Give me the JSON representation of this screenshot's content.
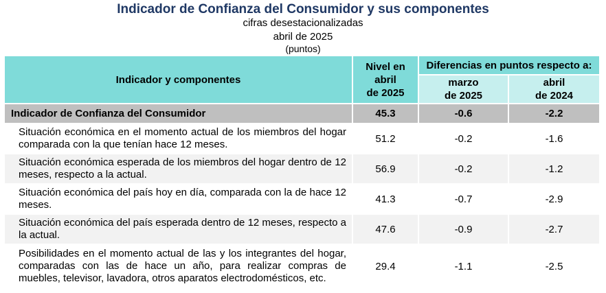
{
  "header": {
    "title": "Indicador de Confianza del Consumidor y sus componentes",
    "subtitle": "cifras desestacionalizadas",
    "period": "abril de 2025",
    "units": "(puntos)"
  },
  "table": {
    "col_indicator": "Indicador y componentes",
    "col_level": [
      "Nivel en",
      "abril",
      "de 2025"
    ],
    "col_diff_group": "Diferencias en puntos respecto a:",
    "col_diff_1": [
      "marzo",
      "de 2025"
    ],
    "col_diff_2": [
      "abril",
      "de 2024"
    ],
    "total": {
      "label": "Indicador de Confianza del Consumidor",
      "level": "45.3",
      "diff_month": "-0.6",
      "diff_year": "-2.2"
    },
    "rows": [
      {
        "label": "Situación económica en el momento actual de los miembros del hogar comparada con la que tenían hace 12 meses.",
        "level": "51.2",
        "diff_month": "-0.2",
        "diff_year": "-1.6"
      },
      {
        "label": "Situación económica esperada de los miembros del hogar dentro de 12 meses, respecto a la actual.",
        "level": "56.9",
        "diff_month": "-0.2",
        "diff_year": "-1.2"
      },
      {
        "label": "Situación económica del país hoy en día, comparada con la de hace 12 meses.",
        "level": "41.3",
        "diff_month": "-0.7",
        "diff_year": "-2.9"
      },
      {
        "label": "Situación económica del país esperada dentro de 12 meses, respecto a la actual.",
        "level": "47.6",
        "diff_month": "-0.9",
        "diff_year": "-2.7"
      },
      {
        "label": "Posibilidades en el momento actual de las y los integrantes del hogar, comparadas con las de hace un año, para realizar compras de muebles, televisor, lavadora, otros aparatos electrodomésticos, etc.",
        "level": "29.4",
        "diff_month": "-1.1",
        "diff_year": "-2.5"
      }
    ]
  }
}
